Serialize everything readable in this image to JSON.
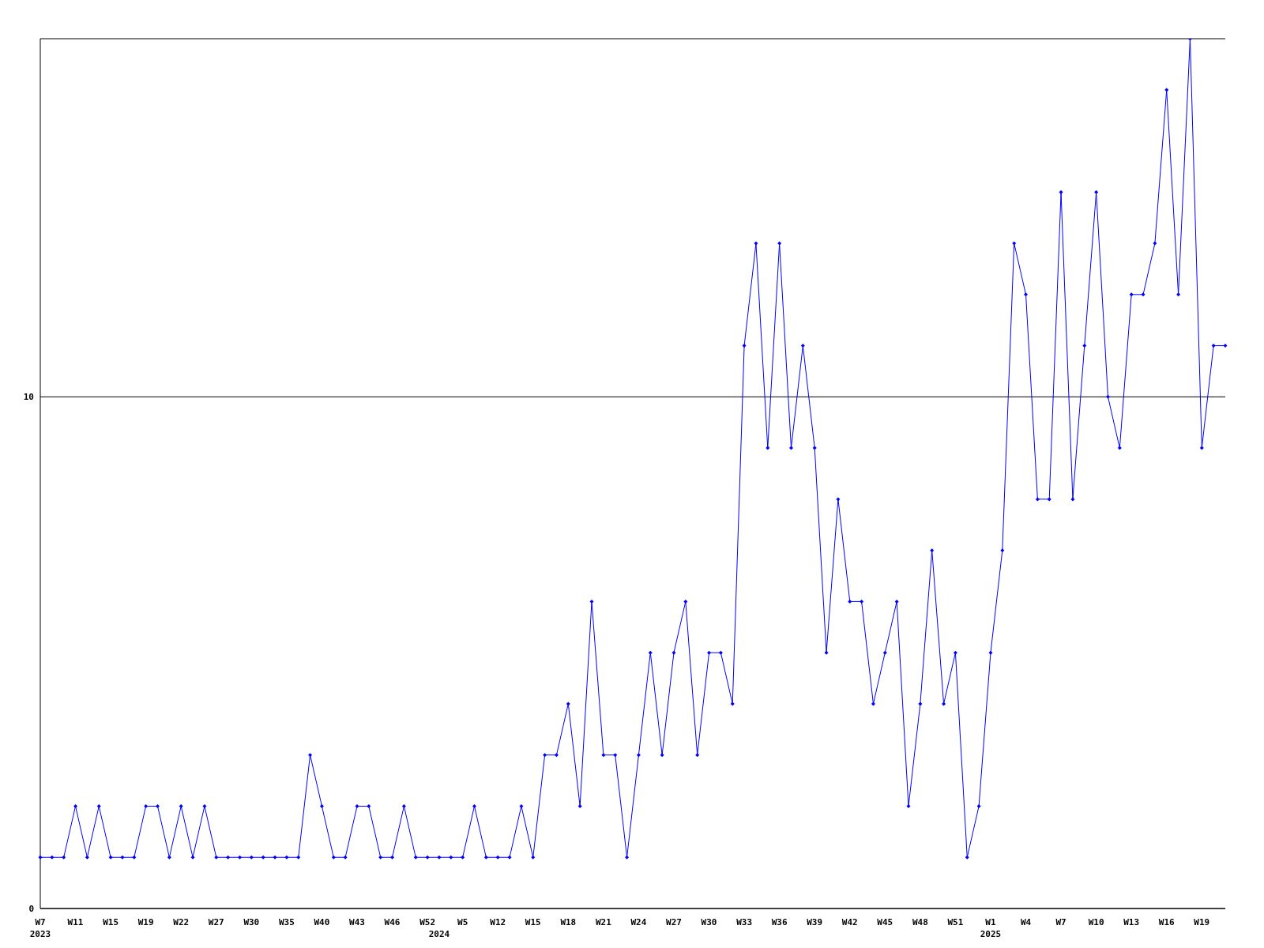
{
  "chart_data": {
    "type": "line",
    "categories": [
      "W7\n2023",
      null,
      null,
      "W11",
      null,
      null,
      "W15",
      null,
      null,
      "W19",
      null,
      null,
      "W22",
      null,
      null,
      "W27",
      null,
      null,
      "W30",
      null,
      null,
      "W35",
      null,
      null,
      "W40",
      null,
      null,
      "W43",
      null,
      null,
      "W46",
      null,
      null,
      "W52",
      "\n2024",
      null,
      "W5",
      null,
      null,
      "W12",
      null,
      null,
      "W15",
      null,
      null,
      "W18",
      null,
      null,
      "W21",
      null,
      null,
      "W24",
      null,
      null,
      "W27",
      null,
      null,
      "W30",
      null,
      null,
      "W33",
      null,
      null,
      "W36",
      null,
      null,
      "W39",
      null,
      null,
      "W42",
      null,
      null,
      "W45",
      null,
      null,
      "W48",
      null,
      null,
      "W51",
      null,
      null,
      "W1\n2025",
      null,
      null,
      "W4",
      null,
      null,
      "W7",
      null,
      null,
      "W10",
      null,
      null,
      "W13",
      null,
      null,
      "W16",
      null,
      null,
      "W19",
      null,
      null
    ],
    "series": [
      {
        "color": "#0000ff",
        "values": [
          1,
          1,
          1,
          2,
          1,
          2,
          1,
          1,
          1,
          2,
          2,
          1,
          2,
          1,
          2,
          1,
          1,
          1,
          1,
          1,
          1,
          1,
          1,
          3,
          2,
          1,
          1,
          2,
          2,
          1,
          1,
          2,
          1,
          1,
          1,
          1,
          1,
          2,
          1,
          1,
          1,
          2,
          1,
          3,
          3,
          4,
          2,
          6,
          3,
          3,
          1,
          3,
          5,
          3,
          5,
          6,
          3,
          5,
          5,
          4,
          11,
          13,
          9,
          13,
          9,
          11,
          9,
          5,
          8,
          6,
          6,
          4,
          5,
          6,
          2,
          4,
          7,
          4,
          5,
          1,
          2,
          5,
          7,
          13,
          12,
          8,
          8,
          14,
          8,
          11,
          14,
          10,
          9,
          12,
          12,
          13,
          16,
          12,
          17,
          9,
          11,
          11
        ]
      }
    ],
    "ylim": [
      0,
      17
    ],
    "yticks": [
      0,
      10
    ],
    "grid": "y",
    "marker": "diamond",
    "line_style": "solid"
  }
}
